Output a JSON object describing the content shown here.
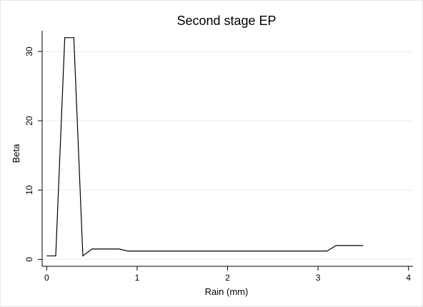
{
  "chart_data": {
    "type": "line",
    "title": "Second stage EP",
    "xlabel": "Rain (mm)",
    "ylabel": "Beta",
    "xlim": [
      -0.05,
      4.05
    ],
    "ylim": [
      -1,
      33
    ],
    "x_ticks": [
      0,
      1,
      2,
      3,
      4
    ],
    "y_ticks": [
      0,
      10,
      20,
      30
    ],
    "grid": "horizontal",
    "legend": "none",
    "colors": {
      "line": "#000000",
      "grid": "#eaeaea",
      "axis": "#000000",
      "background": "#ffffff"
    },
    "series": [
      {
        "x": [
          0.0,
          0.1,
          0.2,
          0.3,
          0.4,
          0.5,
          0.8,
          0.9,
          3.1,
          3.2,
          3.5
        ],
        "y": [
          0.5,
          0.5,
          32.0,
          32.0,
          0.5,
          1.5,
          1.5,
          1.2,
          1.2,
          2.0,
          2.0
        ]
      }
    ]
  }
}
